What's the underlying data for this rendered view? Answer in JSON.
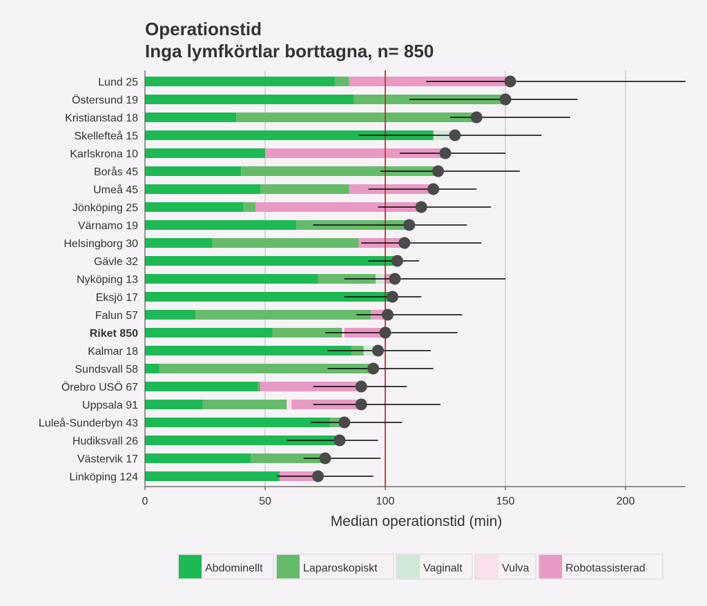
{
  "chart_data": {
    "type": "bar",
    "title": "Operationstid",
    "subtitle": "Inga lymfkörtlar borttagna, n= 850",
    "xlabel": "Median operationstid (min)",
    "ylabel": "",
    "xlim": [
      0,
      225
    ],
    "xticks": [
      0,
      50,
      100,
      150,
      200
    ],
    "reference_line": 100,
    "grid": true,
    "legend_position": "bottom",
    "highlight_category": "Riket 850",
    "series": [
      {
        "name": "Abdominellt",
        "color": "#1db954"
      },
      {
        "name": "Laparoskopiskt",
        "color": "#66bb6a"
      },
      {
        "name": "Vaginalt",
        "color": "#d0e8d5"
      },
      {
        "name": "Vulva",
        "color": "#f9e0ec"
      },
      {
        "name": "Robotassisterad",
        "color": "#e89ac4"
      }
    ],
    "categories": [
      "Lund 25",
      "Östersund 19",
      "Kristianstad 18",
      "Skellefteå 15",
      "Karlskrona 10",
      "Borås 45",
      "Umeå 45",
      "Jönköping 25",
      "Värnamo 19",
      "Helsingborg 30",
      "Gävle 32",
      "Nyköping 13",
      "Eksjö 17",
      "Falun 57",
      "Riket 850",
      "Kalmar 18",
      "Sundsvall 58",
      "Örebro USÖ 67",
      "Uppsala 91",
      "Luleå-Sunderbyn 43",
      "Hudiksvall 26",
      "Västervik 17",
      "Linköping 124"
    ],
    "stacked_values": [
      [
        79,
        6,
        0,
        0,
        67
      ],
      [
        87,
        63,
        0,
        0,
        0
      ],
      [
        38,
        100,
        0,
        0,
        0
      ],
      [
        120,
        0,
        8,
        0,
        0
      ],
      [
        50,
        0,
        0,
        0,
        75
      ],
      [
        40,
        82,
        0,
        0,
        0
      ],
      [
        48,
        37,
        0,
        0,
        35
      ],
      [
        41,
        5,
        0,
        0,
        69
      ],
      [
        63,
        47,
        0,
        0,
        0
      ],
      [
        28,
        61,
        0,
        0,
        19
      ],
      [
        105,
        0,
        0,
        0,
        0
      ],
      [
        72,
        24,
        4,
        0,
        4
      ],
      [
        104,
        0,
        0,
        0,
        0
      ],
      [
        21,
        73,
        0,
        0,
        8
      ],
      [
        53,
        29,
        0,
        1,
        17
      ],
      [
        86,
        5,
        4,
        0,
        2
      ],
      [
        6,
        90,
        0,
        0,
        0
      ],
      [
        47,
        1,
        0,
        0,
        42
      ],
      [
        24,
        35,
        0,
        2,
        29
      ],
      [
        77,
        6,
        0,
        0,
        0
      ],
      [
        81,
        0,
        0,
        0,
        0
      ],
      [
        44,
        31,
        0,
        0,
        0
      ],
      [
        56,
        0,
        0,
        0,
        16
      ]
    ],
    "medians": [
      152,
      150,
      138,
      129,
      125,
      122,
      120,
      115,
      110,
      108,
      105,
      104,
      103,
      101,
      100,
      97,
      95,
      90,
      90,
      83,
      81,
      75,
      72
    ],
    "ci_lower": [
      117,
      110,
      127,
      89,
      106,
      98,
      93,
      97,
      70,
      90,
      93,
      83,
      83,
      88,
      75,
      76,
      76,
      70,
      70,
      69,
      59,
      66,
      55
    ],
    "ci_upper": [
      225,
      180,
      177,
      165,
      150,
      156,
      138,
      144,
      134,
      140,
      114,
      150,
      115,
      132,
      130,
      119,
      120,
      109,
      123,
      107,
      97,
      98,
      95
    ]
  }
}
